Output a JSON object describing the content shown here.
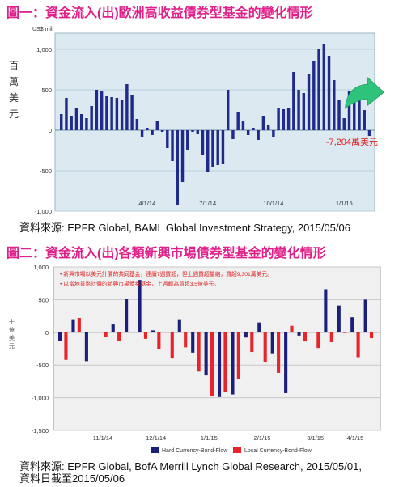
{
  "chart1": {
    "title_label": "圖一：",
    "title": "資金流入(出)歐洲高收益債券型基金的變化情形",
    "source": "資料來源: EPFR Global, BAML Global Investment Strategy, 2015/05/06",
    "unit": "US$ mill",
    "ylabel": "百萬美元",
    "annotation": "-7,204萬美元",
    "colors": {
      "bar": "#1f2a8c",
      "plot_bg": "#dce9f0",
      "grid": "#b9d0db",
      "arrow": "#2ec27a",
      "annotation": "#e02020",
      "title": "#e0218a"
    },
    "chart_data": {
      "type": "bar",
      "ylim": [
        -1000,
        1200
      ],
      "yticks": [
        -1000,
        -500,
        0,
        500,
        1000
      ],
      "ytick_labels": [
        "-1,000",
        "-500",
        "0",
        "500",
        "1,000"
      ],
      "xtick_labels": [
        {
          "label": "4/1/14",
          "index": 17
        },
        {
          "label": "7/1/14",
          "index": 29
        },
        {
          "label": "10/1/14",
          "index": 42
        },
        {
          "label": "1/1/15",
          "index": 56
        }
      ],
      "values": [
        200,
        400,
        180,
        280,
        200,
        150,
        300,
        500,
        480,
        420,
        410,
        400,
        380,
        570,
        430,
        140,
        -80,
        30,
        -60,
        120,
        -20,
        -220,
        -380,
        -920,
        -640,
        -250,
        -20,
        -50,
        -300,
        -520,
        -450,
        -430,
        -420,
        500,
        -110,
        230,
        120,
        -60,
        30,
        -120,
        170,
        60,
        -80,
        280,
        260,
        280,
        720,
        500,
        460,
        700,
        850,
        1000,
        1060,
        920,
        620,
        380,
        150,
        480,
        500,
        400,
        250,
        -70
      ]
    }
  },
  "chart2": {
    "title_label": "圖二：",
    "title": "資金流入(出)各類新興市場債券型基金的變化情形",
    "source_line1": "資料來源: EPFR Global, BofA Merrill Lynch Global Research, 2015/05/01,",
    "source_line2": "資料日截至2015/05/06",
    "ylabel": "十億美元",
    "notes": [
      "• 新興市場以美元計價的共同基金，連續7週買超，但上週買超量縮，買超9,301萬美元。",
      "• 以當地貨幣計價的新興市場債券基金，上週轉為買超3.5億美元。"
    ],
    "colors": {
      "hard": "#1a1f7a",
      "local": "#e8232a",
      "plot_bg": "#f0f0f0",
      "grid": "#c8c8c8",
      "note": "#e02020"
    },
    "chart_data": {
      "type": "bar",
      "ylim": [
        -1500,
        1000
      ],
      "yticks": [
        -1500,
        -1000,
        -500,
        0,
        500,
        1000
      ],
      "ytick_labels": [
        "-1,500",
        "-1,000",
        "-500",
        "0",
        "500",
        "1,000"
      ],
      "categories_count": 24,
      "xtick_labels": [
        {
          "label": "11/1/14",
          "index": 3
        },
        {
          "label": "12/1/14",
          "index": 7
        },
        {
          "label": "1/1/15",
          "index": 11
        },
        {
          "label": "2/1/15",
          "index": 15
        },
        {
          "label": "3/1/15",
          "index": 19
        },
        {
          "label": "4/1/15",
          "index": 22
        }
      ],
      "series": [
        {
          "name": "Hard Currency-Bond-Flow",
          "values": [
            -130,
            200,
            -440,
            0,
            120,
            510,
            800,
            30,
            0,
            200,
            -310,
            -660,
            -990,
            -950,
            -80,
            150,
            -320,
            -930,
            -50,
            0,
            660,
            410,
            230,
            500
          ]
        },
        {
          "name": "Local Currency-Bond-Flow",
          "values": [
            -420,
            220,
            0,
            -70,
            -130,
            0,
            -100,
            -250,
            -400,
            -230,
            -600,
            -980,
            -910,
            -720,
            -300,
            -460,
            -620,
            100,
            -140,
            -240,
            -150,
            1.0,
            -380,
            -90
          ]
        }
      ]
    }
  }
}
